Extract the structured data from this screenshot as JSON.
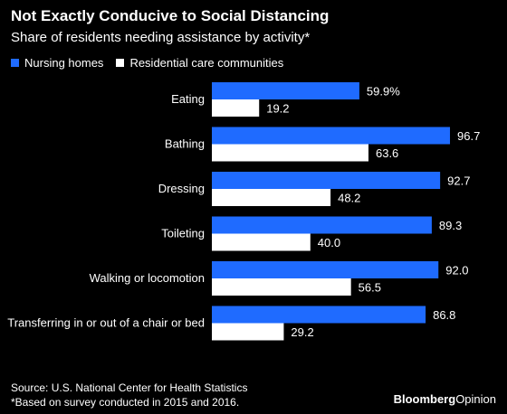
{
  "header": {
    "title": "Not Exactly Conducive to Social Distancing",
    "subtitle": "Share of residents needing assistance by activity*"
  },
  "chart_data": {
    "type": "bar",
    "orientation": "horizontal",
    "categories": [
      "Eating",
      "Bathing",
      "Dressing",
      "Toileting",
      "Walking or locomotion",
      "Transferring in or out of a chair or bed"
    ],
    "series": [
      {
        "name": "Nursing homes",
        "color": "#1f6bff",
        "values": [
          59.9,
          96.7,
          92.7,
          89.3,
          92.0,
          86.8
        ],
        "labels": [
          "59.9%",
          "96.7",
          "92.7",
          "89.3",
          "92.0",
          "86.8"
        ]
      },
      {
        "name": "Residential care communities",
        "color": "#ffffff",
        "values": [
          19.2,
          63.6,
          48.2,
          40.0,
          56.5,
          29.2
        ],
        "labels": [
          "19.2",
          "63.6",
          "48.2",
          "40.0",
          "56.5",
          "29.2"
        ]
      }
    ],
    "xlim": [
      0,
      100
    ],
    "grid": false,
    "legend_position": "top-left"
  },
  "footer": {
    "source": "Source: U.S. National Center for Health Statistics",
    "note": "*Based on survey conducted in 2015 and 2016.",
    "brand_bold": "Bloomberg",
    "brand_light": "Opinion"
  }
}
